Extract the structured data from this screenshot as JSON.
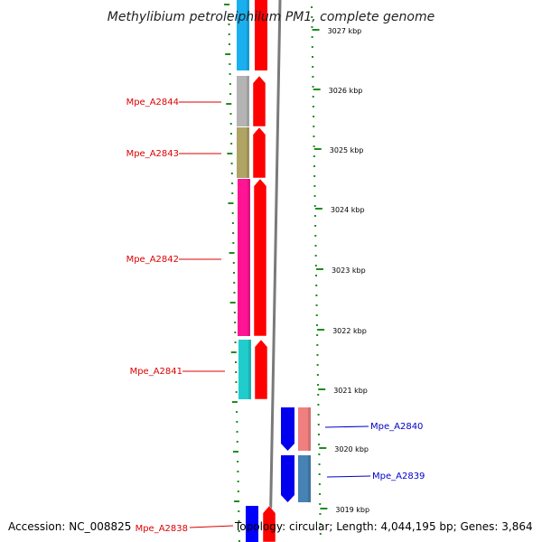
{
  "title": "Methylibium petroleiphilum PM1, complete genome",
  "footer": {
    "accession": "Accession: NC_008825",
    "topology": "Topology: circular; Length: 4,044,195 bp; Genes: 3,864"
  },
  "kbp_labels": [
    "3027 kbp",
    "3026 kbp",
    "3025 kbp",
    "3024 kbp",
    "3023 kbp",
    "3022 kbp",
    "3021 kbp",
    "3020 kbp",
    "3019 kbp"
  ],
  "genes": [
    {
      "label": "Mpe_A2844",
      "color": "#b4b4b4",
      "strand": "forward"
    },
    {
      "label": "Mpe_A2843",
      "color": "#b0a464",
      "strand": "forward"
    },
    {
      "label": "Mpe_A2842",
      "color": "#ff1493",
      "strand": "forward"
    },
    {
      "label": "Mpe_A2841",
      "color": "#20cccc",
      "strand": "forward"
    },
    {
      "label": "Mpe_A2840",
      "color": "#f08080",
      "strand": "reverse"
    },
    {
      "label": "Mpe_A2839",
      "color": "#4682b4",
      "strand": "reverse"
    },
    {
      "label": "Mpe_A2838",
      "color": "#0000ff",
      "strand": "reverse"
    }
  ],
  "colors": {
    "forward_label": "#dd0000",
    "reverse_label": "#0000cc",
    "forward_cds": "#ff0000",
    "reverse_cds": "#0000ee",
    "top_segment": "#1ab0f0",
    "ruler_tick": "#1e8c1e",
    "backbone": "#7a7a7a"
  }
}
